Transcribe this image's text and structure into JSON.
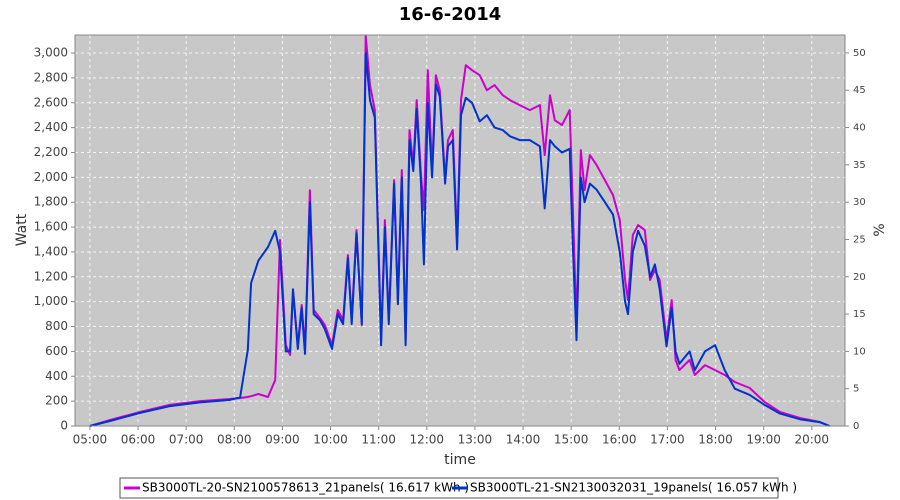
{
  "chart_data": {
    "type": "line",
    "title": "16-6-2014",
    "x_label": "time",
    "y_label": "Watt",
    "y2_label": "%",
    "xlim": [
      4.69,
      20.69
    ],
    "ylim": [
      0,
      3145
    ],
    "y2lim": [
      0,
      52.4
    ],
    "grid": true,
    "xticks": [
      {
        "value": 5,
        "label": "05:00"
      },
      {
        "value": 6,
        "label": "06:00"
      },
      {
        "value": 7,
        "label": "07:00"
      },
      {
        "value": 8,
        "label": "08:00"
      },
      {
        "value": 9,
        "label": "09:00"
      },
      {
        "value": 10,
        "label": "10:00"
      },
      {
        "value": 11,
        "label": "11:00"
      },
      {
        "value": 12,
        "label": "12:00"
      },
      {
        "value": 13,
        "label": "13:00"
      },
      {
        "value": 14,
        "label": "14:00"
      },
      {
        "value": 15,
        "label": "15:00"
      },
      {
        "value": 16,
        "label": "16:00"
      },
      {
        "value": 17,
        "label": "17:00"
      },
      {
        "value": 18,
        "label": "18:00"
      },
      {
        "value": 19,
        "label": "19:00"
      },
      {
        "value": 20,
        "label": "20:00"
      }
    ],
    "yticks": [
      0,
      200,
      400,
      600,
      800,
      {
        "value": 1000,
        "label": "1,000"
      },
      {
        "value": 1200,
        "label": "1,200"
      },
      {
        "value": 1400,
        "label": "1,400"
      },
      {
        "value": 1600,
        "label": "1,600"
      },
      {
        "value": 1800,
        "label": "1,800"
      },
      {
        "value": 2000,
        "label": "2,000"
      },
      {
        "value": 2200,
        "label": "2,200"
      },
      {
        "value": 2400,
        "label": "2,400"
      },
      {
        "value": 2600,
        "label": "2,600"
      },
      {
        "value": 2800,
        "label": "2,800"
      },
      {
        "value": 3000,
        "label": "3,000"
      }
    ],
    "y2ticks": [
      0,
      5,
      10,
      15,
      20,
      25,
      30,
      35,
      40,
      45,
      50
    ],
    "x": [
      5.0,
      5.42,
      6.04,
      6.66,
      7.29,
      7.91,
      8.12,
      8.28,
      8.35,
      8.5,
      8.7,
      8.85,
      8.95,
      9.07,
      9.16,
      9.22,
      9.32,
      9.4,
      9.47,
      9.57,
      9.65,
      9.78,
      9.88,
      10.03,
      10.15,
      10.26,
      10.36,
      10.44,
      10.54,
      10.65,
      10.73,
      10.82,
      10.92,
      11.05,
      11.13,
      11.21,
      11.32,
      11.4,
      11.48,
      11.56,
      11.64,
      11.72,
      11.79,
      11.88,
      11.94,
      12.02,
      12.11,
      12.19,
      12.27,
      12.38,
      12.44,
      12.54,
      12.63,
      12.71,
      12.81,
      12.94,
      13.1,
      13.25,
      13.41,
      13.58,
      13.73,
      13.93,
      14.14,
      14.35,
      14.45,
      14.56,
      14.66,
      14.81,
      14.97,
      15.03,
      15.11,
      15.2,
      15.28,
      15.39,
      15.53,
      15.7,
      15.87,
      16.01,
      16.12,
      16.18,
      16.28,
      16.39,
      16.53,
      16.64,
      16.74,
      16.84,
      16.98,
      17.09,
      17.17,
      17.25,
      17.46,
      17.57,
      17.78,
      17.99,
      18.19,
      18.4,
      18.71,
      19.02,
      19.34,
      19.75,
      20.17,
      20.37
    ],
    "series": [
      {
        "name": "SB3000TL-20-SN2100578613_21panels( 16.617 kWh )",
        "color": "#cc00cc",
        "values": [
          0,
          48,
          113,
          170,
          200,
          217,
          225,
          233,
          240,
          257,
          233,
          370,
          1496,
          651,
          571,
          1093,
          651,
          973,
          611,
          1897,
          933,
          868,
          812,
          651,
          933,
          852,
          1375,
          852,
          1576,
          812,
          3140,
          2742,
          2541,
          691,
          1656,
          852,
          1978,
          1013,
          2058,
          691,
          2380,
          2098,
          2621,
          2018,
          1737,
          2862,
          2058,
          2822,
          2701,
          1978,
          2300,
          2380,
          1496,
          2621,
          2902,
          2862,
          2822,
          2701,
          2742,
          2661,
          2621,
          2581,
          2541,
          2581,
          2179,
          2661,
          2460,
          2420,
          2541,
          1817,
          812,
          2219,
          1897,
          2179,
          2098,
          1978,
          1857,
          1656,
          1174,
          1013,
          1536,
          1616,
          1576,
          1174,
          1254,
          1174,
          691,
          1013,
          531,
          450,
          531,
          410,
          490,
          450,
          410,
          354,
          306,
          193,
          113,
          64,
          32,
          0
        ]
      },
      {
        "name": "SB3000TL-21-SN2130032031_19panels( 16.057 kWh )",
        "color": "#0033cc",
        "values": [
          0,
          40,
          105,
          160,
          190,
          210,
          230,
          611,
          1150,
          1330,
          1440,
          1570,
          1400,
          600,
          600,
          1100,
          620,
          950,
          580,
          1800,
          900,
          850,
          780,
          620,
          900,
          820,
          1350,
          820,
          1550,
          820,
          3000,
          2620,
          2480,
          650,
          1600,
          820,
          1950,
          980,
          2000,
          650,
          2300,
          2050,
          2550,
          1950,
          1300,
          2600,
          2000,
          2750,
          2650,
          1950,
          2250,
          2300,
          1420,
          2500,
          2640,
          2600,
          2450,
          2500,
          2400,
          2380,
          2330,
          2300,
          2300,
          2250,
          1750,
          2300,
          2250,
          2200,
          2230,
          1500,
          690,
          2000,
          1800,
          1950,
          1900,
          1800,
          1700,
          1400,
          1000,
          900,
          1400,
          1570,
          1450,
          1200,
          1300,
          1100,
          640,
          950,
          600,
          500,
          600,
          450,
          600,
          650,
          450,
          300,
          250,
          170,
          100,
          55,
          30,
          0
        ]
      }
    ]
  }
}
